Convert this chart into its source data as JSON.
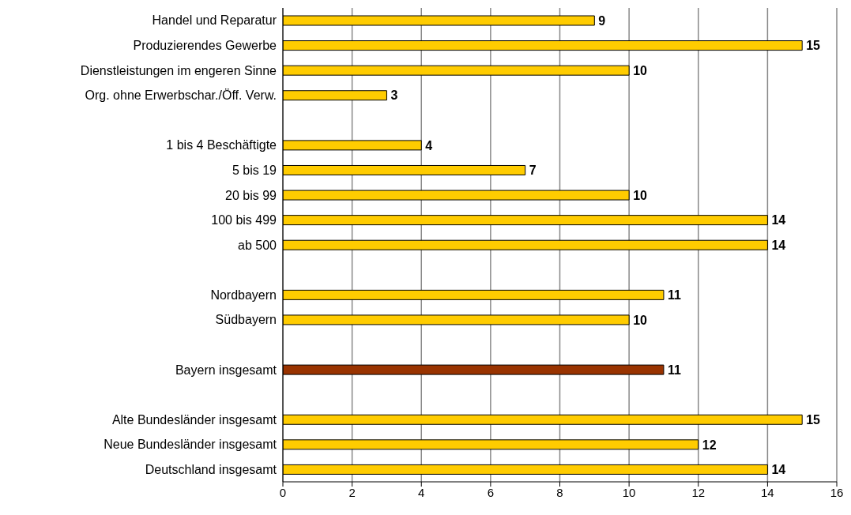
{
  "chart_data": {
    "type": "bar",
    "orientation": "horizontal",
    "categories": [
      "Handel und Reparatur",
      "Produzierendes Gewerbe",
      "Dienstleistungen im engeren Sinne",
      "Org. ohne Erwerbschar./Öff. Verw.",
      null,
      "1 bis 4 Beschäftigte",
      "5 bis 19",
      "20 bis 99",
      "100 bis 499",
      "ab 500",
      null,
      "Nordbayern",
      "Südbayern",
      null,
      "Bayern insgesamt",
      null,
      "Alte Bundesländer insgesamt",
      "Neue Bundesländer insgesamt",
      "Deutschland insgesamt"
    ],
    "values": [
      9,
      15,
      10,
      3,
      null,
      4,
      7,
      10,
      14,
      14,
      null,
      11,
      10,
      null,
      11,
      null,
      15,
      12,
      14
    ],
    "colors": [
      "#ffcc00",
      "#ffcc00",
      "#ffcc00",
      "#ffcc00",
      "#ffcc00",
      "#ffcc00",
      "#ffcc00",
      "#ffcc00",
      "#ffcc00",
      "#ffcc00",
      "#ffcc00",
      "#ffcc00",
      "#ffcc00",
      "#ffcc00",
      "#993300",
      "#ffcc00",
      "#ffcc00",
      "#ffcc00",
      "#ffcc00"
    ],
    "xlim": [
      0,
      16
    ],
    "xticks": [
      0,
      2,
      4,
      6,
      8,
      10,
      12,
      14,
      16
    ],
    "grid": "x",
    "data_labels": true,
    "legend": false
  }
}
